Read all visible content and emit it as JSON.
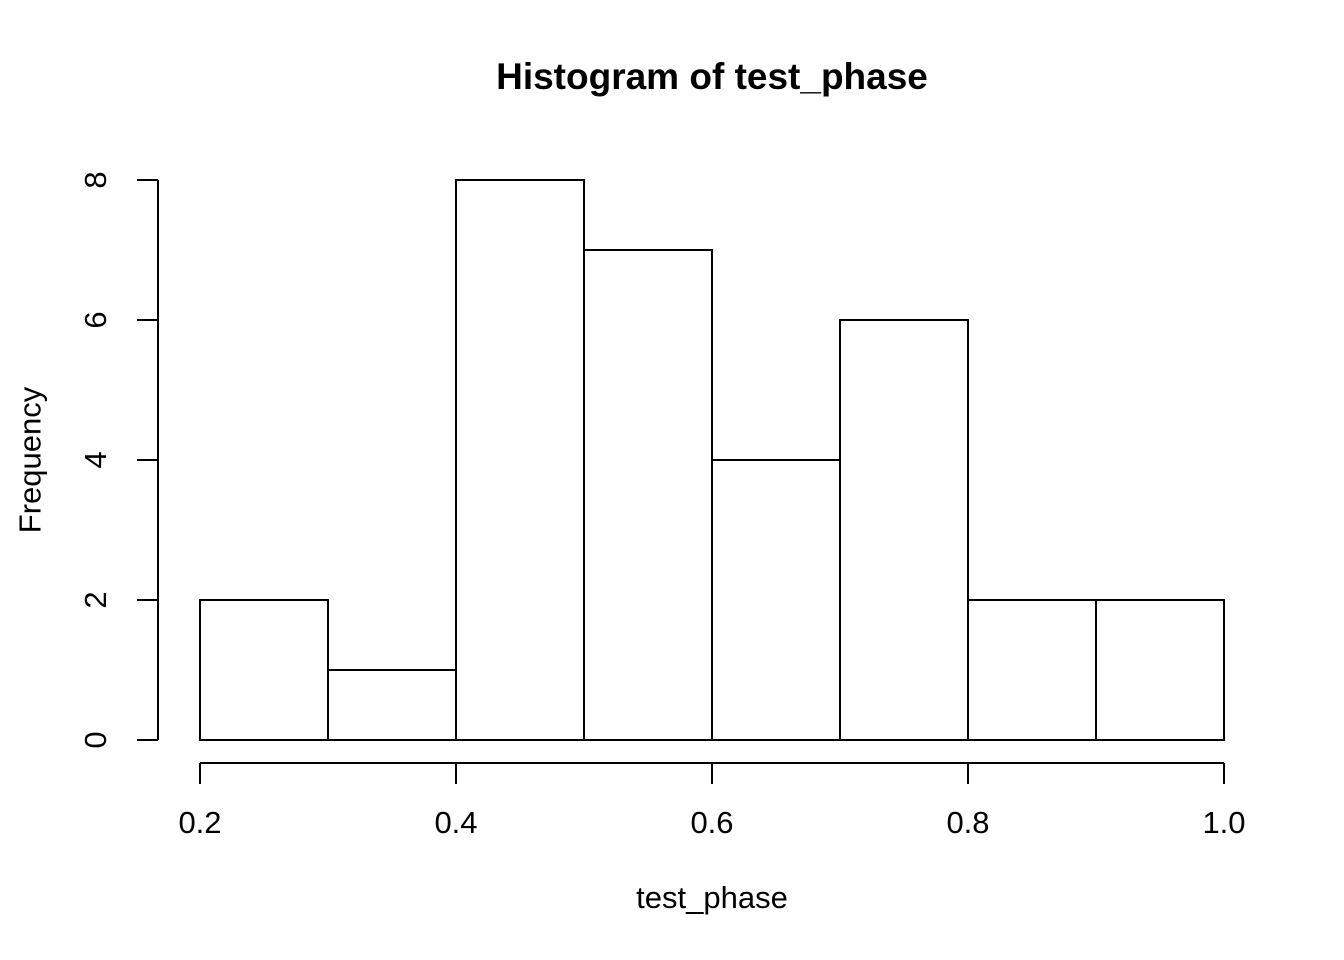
{
  "figure": {
    "background": "#ffffff",
    "line_color": "#000000",
    "text_color": "#000000"
  },
  "chart_data": {
    "type": "bar",
    "subtype": "histogram",
    "title": "Histogram of test_phase",
    "xlabel": "test_phase",
    "ylabel": "Frequency",
    "bin_breaks": [
      0.2,
      0.3,
      0.4,
      0.5,
      0.6,
      0.7,
      0.8,
      0.9,
      1.0
    ],
    "counts": [
      2,
      1,
      8,
      7,
      4,
      6,
      2,
      2
    ],
    "xlim": [
      0.2,
      1.0
    ],
    "ylim": [
      0,
      8
    ],
    "x_tick_values": [
      0.2,
      0.4,
      0.6,
      0.8,
      1.0
    ],
    "x_tick_labels": [
      "0.2",
      "0.4",
      "0.6",
      "0.8",
      "1.0"
    ],
    "y_tick_values": [
      0,
      2,
      4,
      6,
      8
    ],
    "y_tick_labels": [
      "0",
      "2",
      "4",
      "6",
      "8"
    ],
    "bar_fill": "#ffffff",
    "bar_border": "#000000",
    "grid": false,
    "legend": false
  }
}
